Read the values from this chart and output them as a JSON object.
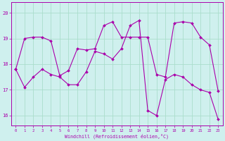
{
  "xlabel": "Windchill (Refroidissement éolien,°C)",
  "background_color": "#cff0ee",
  "grid_color": "#aaddcc",
  "line_color": "#aa00aa",
  "xlim": [
    -0.5,
    23.5
  ],
  "ylim": [
    15.6,
    20.4
  ],
  "xticks": [
    0,
    1,
    2,
    3,
    4,
    5,
    6,
    7,
    8,
    9,
    10,
    11,
    12,
    13,
    14,
    15,
    16,
    17,
    18,
    19,
    20,
    21,
    22,
    23
  ],
  "yticks": [
    16,
    17,
    18,
    19,
    20
  ],
  "series1_x": [
    0,
    1,
    2,
    3,
    4,
    5,
    6,
    7,
    8,
    9,
    10,
    11,
    12,
    13,
    14,
    15,
    16,
    17,
    18,
    19,
    20,
    21,
    22,
    23
  ],
  "series1_y": [
    17.8,
    17.1,
    17.5,
    17.8,
    17.6,
    17.5,
    17.2,
    17.2,
    17.7,
    18.5,
    18.4,
    18.2,
    18.6,
    19.5,
    19.7,
    16.2,
    16.0,
    17.4,
    17.6,
    17.5,
    17.2,
    17.0,
    16.9,
    15.85
  ],
  "series2_x": [
    0,
    1,
    2,
    3,
    4,
    5,
    6,
    7,
    8,
    9,
    10,
    11,
    12,
    13,
    14,
    15,
    16,
    17,
    18,
    19,
    20,
    21,
    22,
    23
  ],
  "series2_y": [
    17.8,
    19.0,
    19.05,
    19.05,
    18.9,
    17.55,
    17.75,
    18.6,
    18.55,
    18.6,
    19.5,
    19.65,
    19.05,
    19.05,
    19.05,
    19.05,
    17.6,
    17.5,
    19.6,
    19.65,
    19.6,
    19.05,
    18.75,
    16.95
  ]
}
